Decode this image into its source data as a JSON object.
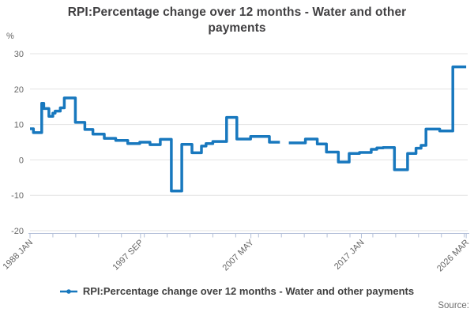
{
  "chart": {
    "title": "RPI:Percentage change over 12 months - Water and other payments",
    "ylabel": "%"
  },
  "legend": {
    "label": "RPI:Percentage change over 12 months - Water and other payments"
  },
  "footer": {
    "source_label": "Source:"
  },
  "colors": {
    "line": "#1878be",
    "grid": "#e3e3e3",
    "axis": "#b3bfd8",
    "tick_text": "#666666"
  },
  "chart_data": {
    "type": "line",
    "style": "step",
    "title": "RPI:Percentage change over 12 months - Water and other payments",
    "xlabel": "",
    "ylabel": "%",
    "ylim": [
      -20,
      30
    ],
    "yticks": [
      30,
      20,
      10,
      0,
      -10,
      -20
    ],
    "x_range": [
      1988.0,
      2026.3
    ],
    "xticks": [
      {
        "pos": 1988.0,
        "label": "1988 JAN"
      },
      {
        "pos": 1997.67,
        "label": "1997 SEP"
      },
      {
        "pos": 2007.33,
        "label": "2007 MAY"
      },
      {
        "pos": 2017.0,
        "label": "2017 JAN"
      },
      {
        "pos": 2026.17,
        "label": "2026 MAR"
      }
    ],
    "minor_tick_years": [
      1988,
      1990,
      1992,
      1994,
      1996,
      1998,
      2000,
      2002,
      2004,
      2006,
      2008,
      2010,
      2012,
      2014,
      2016,
      2018,
      2020,
      2022,
      2024,
      2026
    ],
    "grid": "horizontal",
    "legend_position": "bottom",
    "series": [
      {
        "name": "RPI:Percentage change over 12 months - Water and other payments",
        "color": "#1878be",
        "note": "stepped annual/monthly percentage changes; runs separated by a data gap (approx. Dec 2009 - Sep 2010); segments are [startYear, endYear, percent]",
        "runs": [
          [
            [
              1988.0,
              1988.3,
              8.8
            ],
            [
              1988.3,
              1989.02,
              7.7
            ],
            [
              1989.02,
              1989.2,
              16.0
            ],
            [
              1989.2,
              1989.65,
              14.5
            ],
            [
              1989.65,
              1990.0,
              12.3
            ],
            [
              1990.0,
              1990.2,
              13.2
            ],
            [
              1990.2,
              1990.65,
              13.8
            ],
            [
              1990.65,
              1991.0,
              14.7
            ],
            [
              1991.0,
              1991.97,
              17.5
            ],
            [
              1991.97,
              1992.8,
              10.6
            ],
            [
              1992.8,
              1993.5,
              8.6
            ],
            [
              1993.5,
              1994.5,
              7.3
            ],
            [
              1994.5,
              1995.5,
              6.1
            ],
            [
              1995.5,
              1996.55,
              5.5
            ],
            [
              1996.55,
              1997.6,
              4.6
            ],
            [
              1997.6,
              1998.5,
              5.0
            ],
            [
              1998.5,
              1999.4,
              4.3
            ],
            [
              1999.4,
              2000.37,
              5.8
            ],
            [
              2000.37,
              2001.28,
              -8.8
            ],
            [
              2001.28,
              2002.17,
              4.4
            ],
            [
              2002.17,
              2003.0,
              2.0
            ],
            [
              2003.0,
              2003.4,
              3.9
            ],
            [
              2003.4,
              2004.0,
              4.6
            ],
            [
              2004.0,
              2005.2,
              5.2
            ],
            [
              2005.2,
              2006.1,
              12.0
            ],
            [
              2006.1,
              2007.3,
              5.9
            ],
            [
              2007.3,
              2008.95,
              6.6
            ],
            [
              2008.95,
              2009.87,
              5.0
            ]
          ],
          [
            [
              2010.65,
              2012.1,
              4.8
            ],
            [
              2012.1,
              2013.14,
              5.9
            ],
            [
              2013.14,
              2013.94,
              4.5
            ],
            [
              2013.94,
              2014.98,
              2.2
            ],
            [
              2014.98,
              2015.93,
              -0.6
            ],
            [
              2015.93,
              2016.83,
              1.8
            ],
            [
              2016.83,
              2017.86,
              2.1
            ],
            [
              2017.86,
              2018.35,
              3.0
            ],
            [
              2018.35,
              2018.9,
              3.4
            ],
            [
              2018.9,
              2019.89,
              3.5
            ],
            [
              2019.89,
              2021.04,
              -2.8
            ],
            [
              2021.04,
              2021.78,
              1.8
            ],
            [
              2021.78,
              2022.22,
              3.3
            ],
            [
              2022.22,
              2022.65,
              4.1
            ],
            [
              2022.65,
              2023.85,
              8.7
            ],
            [
              2023.85,
              2025.0,
              8.2
            ],
            [
              2025.0,
              2026.17,
              26.3
            ]
          ]
        ]
      }
    ]
  }
}
